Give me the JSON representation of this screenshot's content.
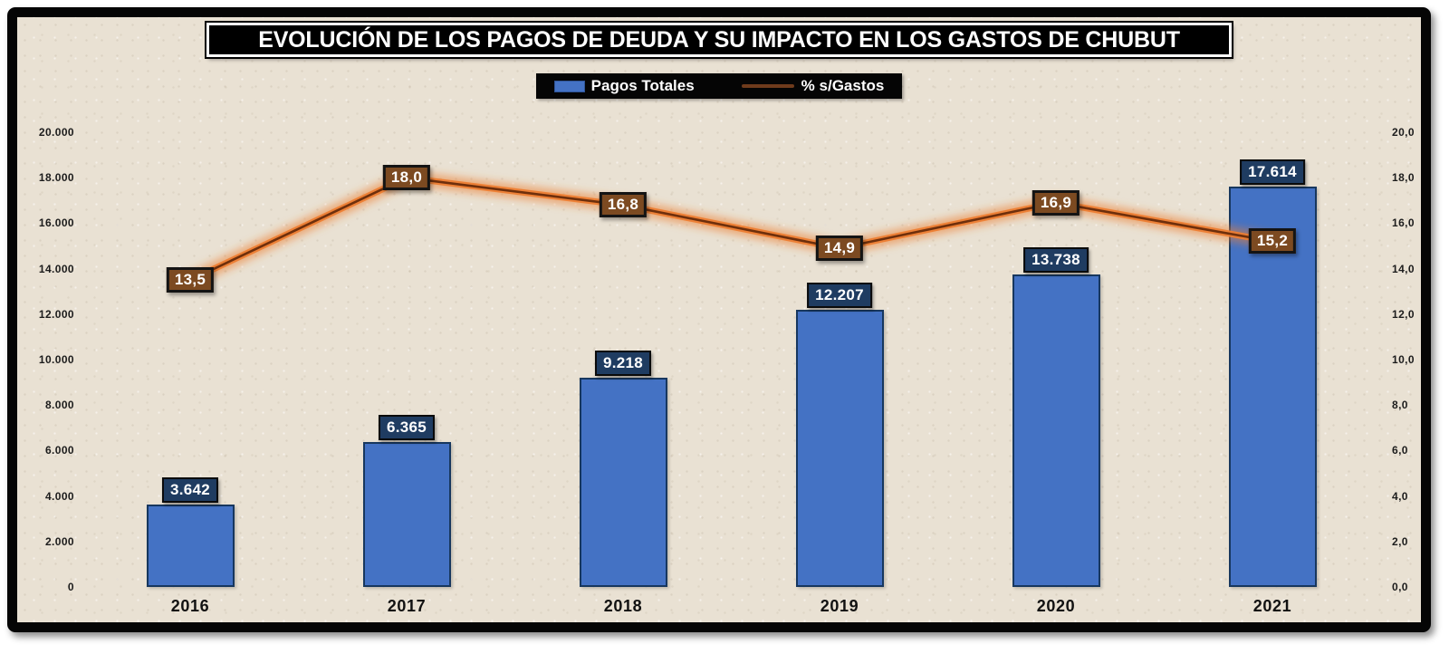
{
  "title": "EVOLUCIÓN DE LOS PAGOS DE DEUDA Y SU IMPACTO EN LOS GASTOS DE CHUBUT",
  "legend": {
    "bars_label": "Pagos Totales",
    "line_label": "% s/Gastos"
  },
  "colors": {
    "background": "#e9e1d3",
    "frame": "#050505",
    "bar_fill": "#4472C4",
    "bar_border": "#17375E",
    "bar_label_bg": "#1F3C61",
    "line_orange": "#ED7D31",
    "line_core": "#6E2F0C",
    "line_label_bg": "#7C4A21",
    "legend_line_swatch": "#6F3B1C"
  },
  "chart_data": {
    "type": "bar",
    "subtype": "bar+line combo",
    "title": "EVOLUCIÓN DE LOS PAGOS DE DEUDA Y SU IMPACTO EN LOS GASTOS DE CHUBUT",
    "categories": [
      "2016",
      "2017",
      "2018",
      "2019",
      "2020",
      "2021"
    ],
    "series": [
      {
        "name": "Pagos Totales",
        "type": "bar",
        "axis": "left",
        "values": [
          3642,
          6365,
          9218,
          12207,
          13738,
          17614
        ],
        "labels": [
          "3.642",
          "6.365",
          "9.218",
          "12.207",
          "13.738",
          "17.614"
        ]
      },
      {
        "name": "% s/Gastos",
        "type": "line",
        "axis": "right",
        "values": [
          13.5,
          18.0,
          16.8,
          14.9,
          16.9,
          15.2
        ],
        "labels": [
          "13,5",
          "18,0",
          "16,8",
          "14,9",
          "16,9",
          "15,2"
        ]
      }
    ],
    "left_axis": {
      "min": 0,
      "max": 20000,
      "step": 2000,
      "tick_labels": [
        "0",
        "2.000",
        "4.000",
        "6.000",
        "8.000",
        "10.000",
        "12.000",
        "14.000",
        "16.000",
        "18.000",
        "20.000"
      ]
    },
    "right_axis": {
      "min": 0,
      "max": 20,
      "step": 2,
      "tick_labels": [
        "0,0",
        "2,0",
        "4,0",
        "6,0",
        "8,0",
        "10,0",
        "12,0",
        "14,0",
        "16,0",
        "18,0",
        "20,0"
      ]
    },
    "grid": false,
    "legend_position": "top"
  }
}
